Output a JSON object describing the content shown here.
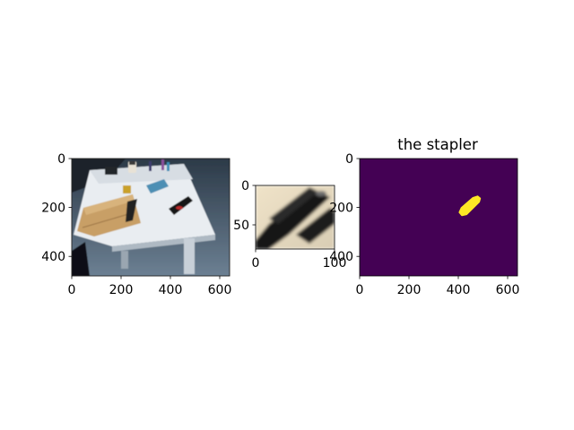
{
  "figure": {
    "background": "#ffffff",
    "text_color": "#000000"
  },
  "chart_data": [
    {
      "type": "image",
      "content": "photo of a white table with a notebook, office supplies and a black stapler",
      "title": "",
      "xlabel": "",
      "ylabel": "",
      "image_size": [
        640,
        480
      ],
      "xlim": [
        0,
        640
      ],
      "ylim": [
        480,
        0
      ],
      "xticks": [
        0,
        200,
        400,
        600
      ],
      "yticks": [
        0,
        200,
        400
      ],
      "xtick_labels": [
        "0",
        "200",
        "400",
        "600"
      ],
      "ytick_labels": [
        "0",
        "200",
        "400"
      ]
    },
    {
      "type": "image",
      "content": "cropped close-up of the black stapler",
      "title": "",
      "xlabel": "",
      "ylabel": "",
      "image_size": [
        100,
        80
      ],
      "xlim": [
        0,
        100
      ],
      "ylim": [
        80,
        0
      ],
      "xticks": [
        0,
        100
      ],
      "yticks": [
        0,
        50
      ],
      "xtick_labels": [
        "0",
        "100"
      ],
      "ytick_labels": [
        "0",
        "50"
      ]
    },
    {
      "type": "heatmap",
      "content": "segmentation mask of the stapler",
      "title": "the stapler",
      "xlabel": "",
      "ylabel": "",
      "image_size": [
        640,
        480
      ],
      "xlim": [
        0,
        640
      ],
      "ylim": [
        480,
        0
      ],
      "background_color": "#440154",
      "mask_color": "#fde725",
      "mask_region": {
        "x_range": [
          405,
          488
        ],
        "y_range": [
          155,
          232
        ]
      },
      "xticks": [
        0,
        200,
        400,
        600
      ],
      "yticks": [
        0,
        200,
        400
      ],
      "xtick_labels": [
        "0",
        "200",
        "400",
        "600"
      ],
      "ytick_labels": [
        "0",
        "200",
        "400"
      ]
    }
  ]
}
